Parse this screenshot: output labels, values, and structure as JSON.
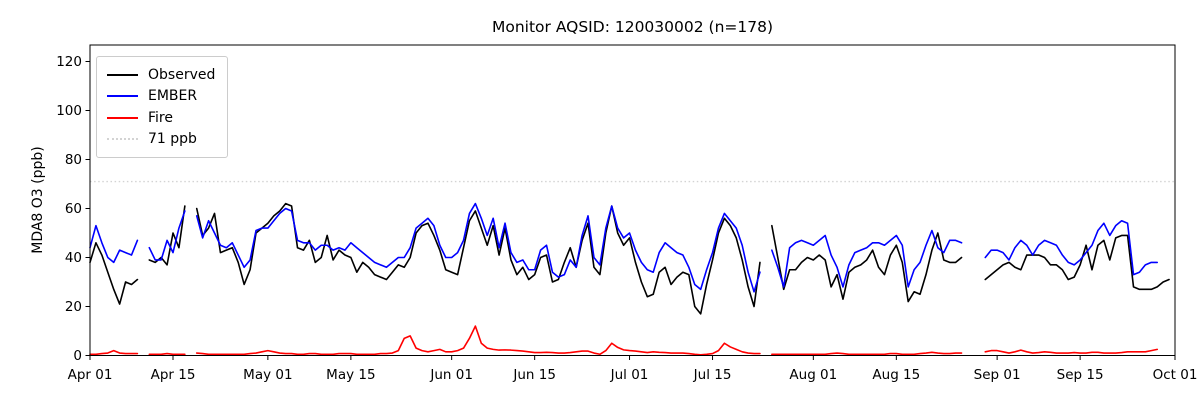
{
  "chart_data": {
    "type": "line",
    "title": "Monitor AQSID: 120030002 (n=178)",
    "xlabel": "",
    "ylabel": "MDA8 O3 (ppb)",
    "ylim": [
      0,
      126
    ],
    "yticks": [
      0,
      20,
      40,
      60,
      80,
      100,
      120
    ],
    "grid": false,
    "legend_position": "upper-left",
    "x_domain_days": 183,
    "x_start": "Apr 01",
    "x_end": "Oct 01",
    "xticks": [
      {
        "i": 0,
        "label": "Apr 01"
      },
      {
        "i": 14,
        "label": "Apr 15"
      },
      {
        "i": 30,
        "label": "May 01"
      },
      {
        "i": 44,
        "label": "May 15"
      },
      {
        "i": 61,
        "label": "Jun 01"
      },
      {
        "i": 75,
        "label": "Jun 15"
      },
      {
        "i": 91,
        "label": "Jul 01"
      },
      {
        "i": 105,
        "label": "Jul 15"
      },
      {
        "i": 122,
        "label": "Aug 01"
      },
      {
        "i": 136,
        "label": "Aug 15"
      },
      {
        "i": 153,
        "label": "Sep 01"
      },
      {
        "i": 167,
        "label": "Sep 15"
      },
      {
        "i": 183,
        "label": "Oct 01"
      }
    ],
    "threshold": {
      "value": 71,
      "label": "71 ppb",
      "color": "#d3d3d3",
      "style": "dotted"
    },
    "series": [
      {
        "name": "Observed",
        "color": "#000000",
        "style": "solid",
        "values": [
          38,
          46,
          41,
          34,
          27,
          21,
          30,
          29,
          31,
          null,
          39,
          38,
          40,
          37,
          50,
          44,
          61,
          null,
          60,
          49,
          52,
          58,
          42,
          43,
          44,
          38,
          29,
          35,
          50,
          52,
          54,
          57,
          59,
          62,
          61,
          44,
          43,
          47,
          38,
          40,
          49,
          39,
          43,
          41,
          40,
          34,
          38,
          36,
          33,
          32,
          31,
          34,
          37,
          36,
          40,
          50,
          53,
          54,
          49,
          43,
          35,
          34,
          33,
          44,
          55,
          59,
          52,
          45,
          53,
          41,
          52,
          39,
          33,
          36,
          31,
          33,
          40,
          41,
          30,
          31,
          38,
          44,
          36,
          47,
          54,
          36,
          33,
          50,
          61,
          50,
          45,
          48,
          38,
          30,
          24,
          25,
          34,
          36,
          29,
          32,
          34,
          33,
          20,
          17,
          29,
          39,
          50,
          56,
          53,
          48,
          39,
          28,
          20,
          38,
          null,
          53,
          40,
          27,
          35,
          35,
          38,
          40,
          39,
          41,
          39,
          28,
          33,
          23,
          34,
          36,
          37,
          39,
          43,
          36,
          33,
          41,
          45,
          38,
          22,
          26,
          25,
          33,
          43,
          50,
          39,
          38,
          38,
          40,
          null,
          null,
          null,
          31,
          33,
          35,
          37,
          38,
          36,
          35,
          41,
          41,
          41,
          40,
          37,
          37,
          35,
          31,
          32,
          37,
          45,
          35,
          45,
          47,
          39,
          48,
          49,
          49,
          28,
          27,
          27,
          27,
          28,
          30,
          31
        ]
      },
      {
        "name": "EMBER",
        "color": "#0000ff",
        "style": "solid",
        "values": [
          44,
          53,
          46,
          40,
          38,
          43,
          42,
          41,
          47,
          null,
          44,
          39,
          39,
          47,
          42,
          52,
          59,
          null,
          57,
          48,
          55,
          50,
          45,
          44,
          46,
          41,
          36,
          39,
          51,
          52,
          52,
          55,
          58,
          60,
          59,
          47,
          46,
          46,
          43,
          45,
          45,
          43,
          44,
          43,
          46,
          44,
          42,
          40,
          38,
          37,
          36,
          38,
          40,
          40,
          44,
          52,
          54,
          56,
          53,
          45,
          40,
          40,
          42,
          47,
          58,
          62,
          56,
          49,
          56,
          44,
          54,
          42,
          38,
          39,
          35,
          35,
          43,
          45,
          34,
          32,
          33,
          39,
          36,
          49,
          57,
          40,
          37,
          52,
          61,
          52,
          48,
          50,
          43,
          38,
          35,
          34,
          42,
          46,
          44,
          42,
          41,
          36,
          29,
          27,
          35,
          42,
          52,
          58,
          55,
          52,
          45,
          34,
          26,
          34,
          null,
          43,
          36,
          28,
          44,
          46,
          47,
          46,
          45,
          47,
          49,
          41,
          36,
          28,
          37,
          42,
          43,
          44,
          46,
          46,
          45,
          47,
          49,
          45,
          28,
          35,
          38,
          45,
          51,
          44,
          42,
          47,
          47,
          46,
          null,
          null,
          null,
          40,
          43,
          43,
          42,
          39,
          44,
          47,
          45,
          41,
          45,
          47,
          46,
          45,
          41,
          38,
          37,
          39,
          42,
          45,
          51,
          54,
          49,
          53,
          55,
          54,
          33,
          34,
          37,
          38,
          38,
          null,
          null
        ]
      },
      {
        "name": "Fire",
        "color": "#ff0000",
        "style": "solid",
        "values": [
          0.5,
          0.5,
          0.8,
          1,
          2,
          1,
          0.8,
          0.8,
          0.8,
          null,
          0.5,
          0.5,
          0.5,
          0.8,
          0.5,
          0.5,
          0.5,
          null,
          1,
          0.8,
          0.5,
          0.5,
          0.5,
          0.5,
          0.5,
          0.5,
          0.5,
          0.8,
          1,
          1.5,
          2,
          1.5,
          1,
          0.8,
          0.8,
          0.5,
          0.5,
          0.8,
          0.8,
          0.5,
          0.5,
          0.5,
          0.8,
          0.8,
          0.8,
          0.5,
          0.5,
          0.5,
          0.5,
          0.8,
          0.8,
          1,
          2,
          7,
          8,
          3,
          2,
          1.5,
          2,
          2.5,
          1.5,
          1.5,
          2,
          3,
          7,
          12,
          5,
          3,
          2.5,
          2.2,
          2.3,
          2.2,
          2,
          1.8,
          1.5,
          1.2,
          1.2,
          1.3,
          1.2,
          1,
          1,
          1.2,
          1.5,
          1.8,
          1.8,
          1,
          0.5,
          2,
          5,
          3.3,
          2.3,
          2,
          1.8,
          1.5,
          1.2,
          1.5,
          1.3,
          1.2,
          1,
          1,
          1,
          0.8,
          0.5,
          0.3,
          0.5,
          0.8,
          2,
          5,
          3.5,
          2.5,
          1.5,
          1,
          0.8,
          0.8,
          null,
          0.5,
          0.5,
          0.5,
          0.5,
          0.5,
          0.5,
          0.5,
          0.5,
          0.5,
          0.5,
          0.8,
          1,
          0.8,
          0.5,
          0.5,
          0.5,
          0.5,
          0.5,
          0.5,
          0.5,
          0.8,
          0.8,
          0.5,
          0.5,
          0.5,
          0.8,
          1,
          1.3,
          1,
          0.8,
          0.8,
          1,
          1,
          null,
          null,
          null,
          1.5,
          2,
          2,
          1.5,
          1,
          1.5,
          2.2,
          1.5,
          1,
          1.2,
          1.5,
          1.3,
          1,
          1,
          1,
          1.2,
          1,
          1,
          1.3,
          1.3,
          1,
          1,
          1,
          1.2,
          1.5,
          1.5,
          1.5,
          1.5,
          2,
          2.5,
          null,
          null
        ]
      }
    ]
  }
}
